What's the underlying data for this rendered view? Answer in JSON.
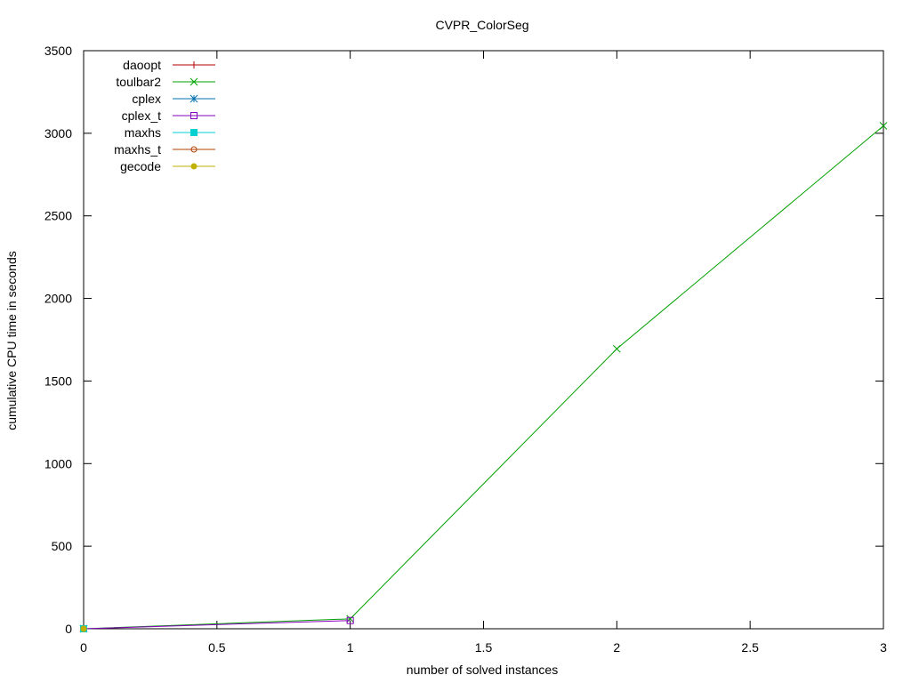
{
  "chart_data": {
    "type": "line",
    "title": "CVPR_ColorSeg",
    "xlabel": "number of solved instances",
    "ylabel": "cumulative CPU time in seconds",
    "xlim": [
      0,
      3
    ],
    "ylim": [
      0,
      3500
    ],
    "xticks": [
      0,
      0.5,
      1,
      1.5,
      2,
      2.5,
      3
    ],
    "yticks": [
      0,
      500,
      1000,
      1500,
      2000,
      2500,
      3000,
      3500
    ],
    "grid": false,
    "legend_position": "top-left",
    "series": [
      {
        "name": "daoopt",
        "color": "#b00000",
        "marker": "plus",
        "x": [
          0
        ],
        "y": [
          0
        ]
      },
      {
        "name": "toulbar2",
        "color": "#00a000",
        "marker": "cross",
        "x": [
          0,
          1,
          2,
          3
        ],
        "y": [
          0,
          60,
          1695,
          3045
        ]
      },
      {
        "name": "cplex",
        "color": "#0070b0",
        "marker": "star",
        "x": [
          0
        ],
        "y": [
          0
        ]
      },
      {
        "name": "cplex_t",
        "color": "#8a00c0",
        "marker": "square-open",
        "x": [
          0,
          1
        ],
        "y": [
          0,
          50
        ]
      },
      {
        "name": "maxhs",
        "color": "#00d0d0",
        "marker": "square-filled",
        "x": [
          0
        ],
        "y": [
          0
        ]
      },
      {
        "name": "maxhs_t",
        "color": "#b04000",
        "marker": "circle-open",
        "x": [
          0
        ],
        "y": [
          0
        ]
      },
      {
        "name": "gecode",
        "color": "#c0b000",
        "marker": "circle-filled",
        "x": [
          0
        ],
        "y": [
          0
        ]
      }
    ]
  }
}
